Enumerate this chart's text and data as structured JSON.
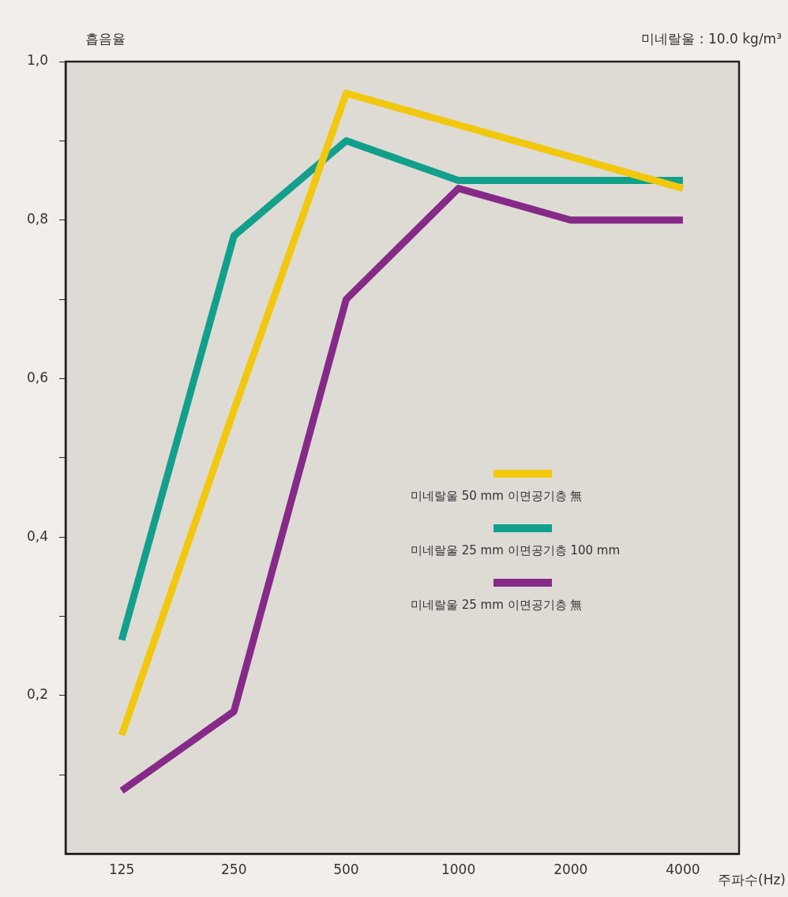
{
  "chart_data": {
    "type": "line",
    "ylabel": "흡음율",
    "xlabel": "주파수(Hz)",
    "annotations": [
      "미네랄울 : 10.0 kg/m³"
    ],
    "categories": [
      "125",
      "250",
      "500",
      "1000",
      "2000",
      "4000"
    ],
    "series": [
      {
        "name": "미네랄울 50 mm 이면공기층 無",
        "color": "#f2c80f",
        "values": [
          0.15,
          0.56,
          0.96,
          0.92,
          0.88,
          0.84
        ]
      },
      {
        "name": "미네랄울 25 mm 이면공기층 100 mm",
        "color": "#12a08c",
        "values": [
          0.27,
          0.78,
          0.9,
          0.85,
          0.85,
          0.85
        ]
      },
      {
        "name": "미네랄울 25 mm 이면공기층 無",
        "color": "#862a88",
        "values": [
          0.08,
          0.18,
          0.7,
          0.84,
          0.8,
          0.8
        ]
      }
    ],
    "ylim": [
      0,
      1
    ],
    "yticks": [
      {
        "value": 0.1,
        "label": null
      },
      {
        "value": 0.2,
        "label": "0,2"
      },
      {
        "value": 0.3,
        "label": null
      },
      {
        "value": 0.4,
        "label": "0,4"
      },
      {
        "value": 0.5,
        "label": null
      },
      {
        "value": 0.6,
        "label": "0,6"
      },
      {
        "value": 0.7,
        "label": null
      },
      {
        "value": 0.8,
        "label": "0,8"
      },
      {
        "value": 0.9,
        "label": null
      },
      {
        "value": 1,
        "label": "1,0"
      }
    ],
    "grid": false,
    "legend": "right",
    "marker": "none",
    "line_style": "solid"
  }
}
